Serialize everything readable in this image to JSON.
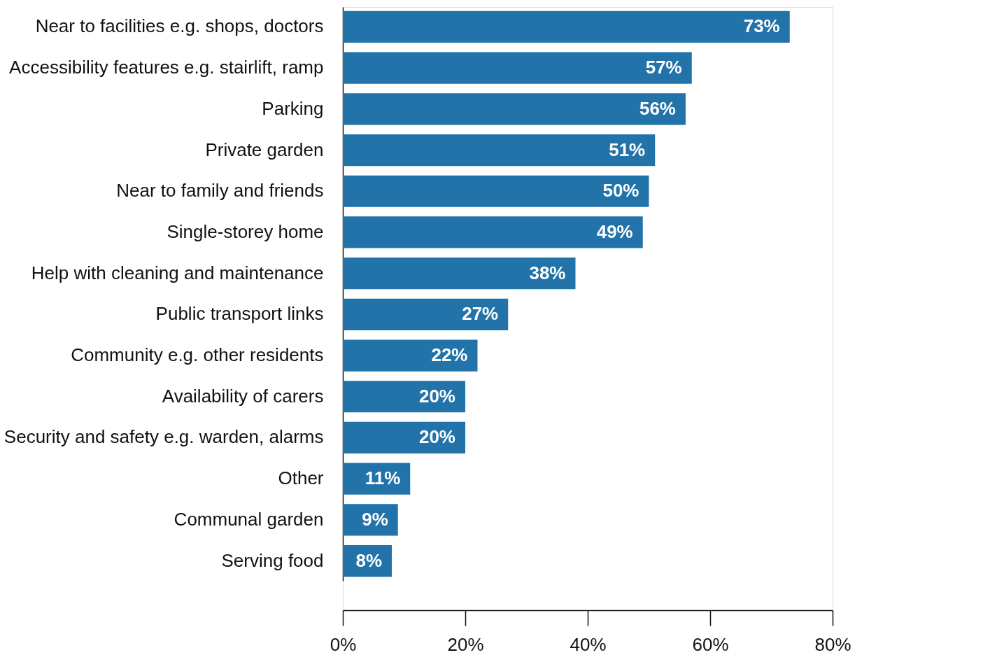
{
  "chart_data": {
    "type": "bar",
    "orientation": "horizontal",
    "categories": [
      "Near to facilities e.g. shops, doctors",
      "Accessibility features e.g. stairlift, ramp",
      "Parking",
      "Private garden",
      "Near to family and friends",
      "Single-storey home",
      "Help with cleaning and maintenance",
      "Public transport links",
      "Community e.g. other residents",
      "Availability of carers",
      "Security and safety e.g. warden, alarms",
      "Other",
      "Communal garden",
      "Serving food"
    ],
    "values": [
      73,
      57,
      56,
      51,
      50,
      49,
      38,
      27,
      22,
      20,
      20,
      11,
      9,
      8
    ],
    "value_labels": [
      "73%",
      "57%",
      "56%",
      "51%",
      "50%",
      "49%",
      "38%",
      "27%",
      "22%",
      "20%",
      "20%",
      "11%",
      "9%",
      "8%"
    ],
    "color": "#2273aa",
    "xlim": [
      0,
      80
    ],
    "xticks": [
      {
        "value": 0,
        "label": "0%"
      },
      {
        "value": 20,
        "label": "20%"
      },
      {
        "value": 40,
        "label": "40%"
      },
      {
        "value": 60,
        "label": "60%"
      },
      {
        "value": 80,
        "label": "80%"
      }
    ],
    "grid": false
  }
}
